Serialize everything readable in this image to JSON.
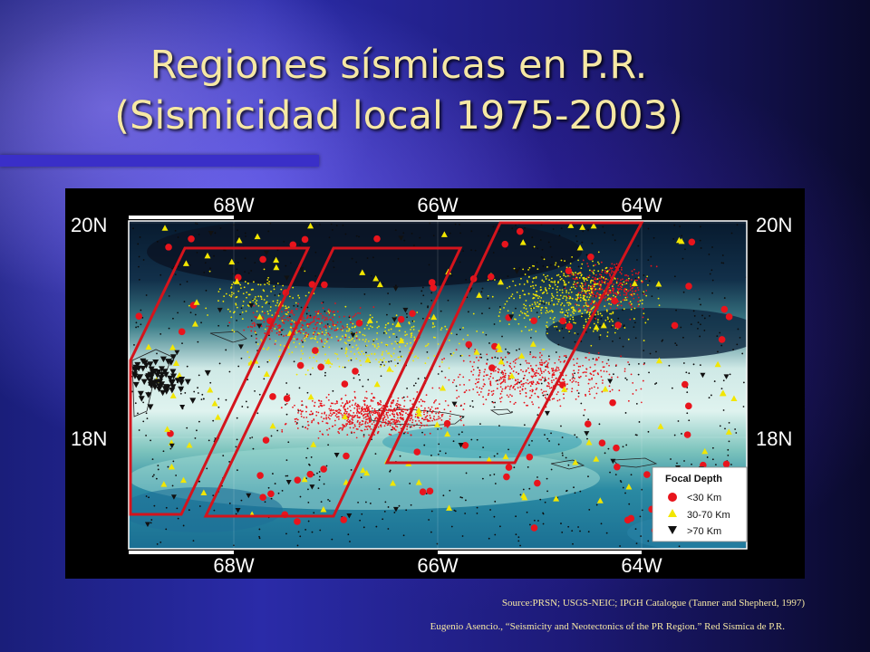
{
  "slide": {
    "title_line1": "Regiones sísmicas en P.R.",
    "title_line2": "(Sismicidad local 1975-2003)"
  },
  "map": {
    "top_lon_labels": [
      "68W",
      "66W",
      "64W"
    ],
    "bottom_lon_labels": [
      "68W",
      "66W",
      "64W"
    ],
    "left_lat_labels": [
      "20N",
      "18N"
    ],
    "right_lat_labels": [
      "20N",
      "18N"
    ],
    "region_count": 3,
    "legend": {
      "title": "Focal Depth",
      "items": [
        {
          "label": "<30 Km",
          "symbol": "circle",
          "color": "#e8141c"
        },
        {
          "label": "30-70 Km",
          "symbol": "triangle-up",
          "color": "#f2e600"
        },
        {
          "label": ">70 Km",
          "symbol": "triangle-down",
          "color": "#111111"
        }
      ]
    },
    "colors": {
      "region_outline": "#d4141c",
      "shallow": "#e8141c",
      "intermediate": "#f2e600",
      "deep": "#111111"
    }
  },
  "footer": {
    "source": "Source:PRSN; USGS-NEIC; IPGH Catalogue (Tanner and Shepherd, 1997)",
    "credit": "Eugenio Asencio., “Seismicity and Neotectonics of the PR Region.” Red Sísmica de P.R."
  }
}
